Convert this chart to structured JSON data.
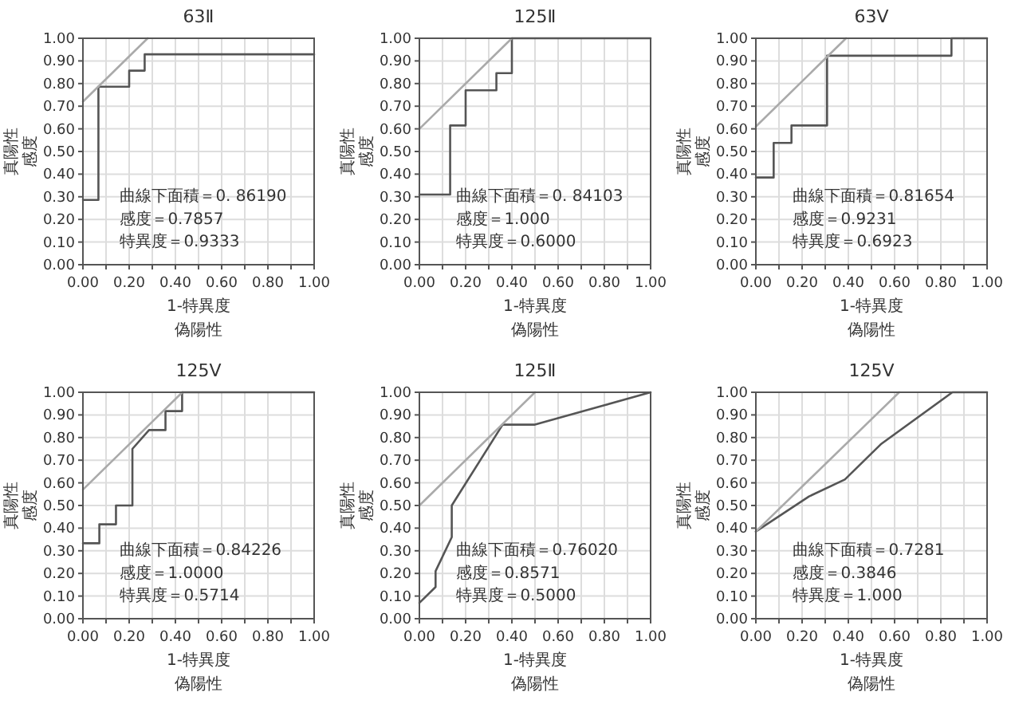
{
  "chart_data": [
    {
      "type": "line",
      "title": "63Ⅱ",
      "xlabel": "1-特異度偽陽性",
      "ylabel": "真陽性感度",
      "xlim": [
        0,
        1
      ],
      "ylim": [
        0,
        1
      ],
      "grid": true,
      "xticks": [
        {
          "value": 0,
          "label": "0.00"
        },
        {
          "value": 0.1,
          "label": null
        },
        {
          "value": 0.2,
          "label": "0.20"
        },
        {
          "value": 0.3,
          "label": null
        },
        {
          "value": 0.4,
          "label": "0.40"
        },
        {
          "value": 0.5,
          "label": null
        },
        {
          "value": 0.6,
          "label": "0.60"
        },
        {
          "value": 0.7,
          "label": null
        },
        {
          "value": 0.8,
          "label": "0.80"
        },
        {
          "value": 0.9,
          "label": null
        },
        {
          "value": 1,
          "label": "1.00"
        }
      ],
      "yticks": [
        {
          "value": 0,
          "label": "0.00"
        },
        {
          "value": 0.1,
          "label": "0.10"
        },
        {
          "value": 0.2,
          "label": "0.20"
        },
        {
          "value": 0.3,
          "label": "0.30"
        },
        {
          "value": 0.4,
          "label": "0.40"
        },
        {
          "value": 0.5,
          "label": "0.50"
        },
        {
          "value": 0.6,
          "label": "0.60"
        },
        {
          "value": 0.7,
          "label": "0.70"
        },
        {
          "value": 0.8,
          "label": "0.80"
        },
        {
          "value": 0.9,
          "label": "0.90"
        },
        {
          "value": 1,
          "label": "1.00"
        }
      ],
      "series": [
        {
          "type": "line",
          "color": "#555555",
          "x": [
            0,
            0.067,
            0.067,
            0.2,
            0.2,
            0.267,
            0.267,
            1
          ],
          "values": [
            0.286,
            0.286,
            0.786,
            0.786,
            0.857,
            0.857,
            0.929,
            0.929
          ]
        },
        {
          "type": "line",
          "color": "#aaaaaa",
          "x": [
            0,
            0.28
          ],
          "values": [
            0.72,
            1
          ]
        }
      ],
      "annotations": [
        "曲線下面積＝0. 86190",
        "感度＝0.7857",
        "特異度＝0.9333"
      ]
    },
    {
      "type": "line",
      "title": "125Ⅱ",
      "xlabel": "1-特異度偽陽性",
      "ylabel": "真陽性感度",
      "xlim": [
        0,
        1
      ],
      "ylim": [
        0,
        1
      ],
      "grid": true,
      "xticks": [
        {
          "value": 0,
          "label": "0.00"
        },
        {
          "value": 0.1,
          "label": null
        },
        {
          "value": 0.2,
          "label": "0.20"
        },
        {
          "value": 0.3,
          "label": null
        },
        {
          "value": 0.4,
          "label": "0.40"
        },
        {
          "value": 0.5,
          "label": null
        },
        {
          "value": 0.6,
          "label": "0.60"
        },
        {
          "value": 0.7,
          "label": null
        },
        {
          "value": 0.8,
          "label": "0.80"
        },
        {
          "value": 0.9,
          "label": null
        },
        {
          "value": 1,
          "label": "1.00"
        }
      ],
      "yticks": [
        {
          "value": 0,
          "label": "0.00"
        },
        {
          "value": 0.1,
          "label": "0.10"
        },
        {
          "value": 0.2,
          "label": "0.20"
        },
        {
          "value": 0.3,
          "label": "0.30"
        },
        {
          "value": 0.4,
          "label": "0.40"
        },
        {
          "value": 0.5,
          "label": "0.50"
        },
        {
          "value": 0.6,
          "label": "0.60"
        },
        {
          "value": 0.7,
          "label": "0.70"
        },
        {
          "value": 0.8,
          "label": "0.80"
        },
        {
          "value": 0.9,
          "label": "0.90"
        },
        {
          "value": 1,
          "label": "1.00"
        }
      ],
      "series": [
        {
          "type": "line",
          "color": "#555555",
          "x": [
            0,
            0.133,
            0.133,
            0.2,
            0.2,
            0.333,
            0.333,
            0.4,
            0.4,
            1
          ],
          "values": [
            0.31,
            0.31,
            0.615,
            0.615,
            0.77,
            0.77,
            0.846,
            0.846,
            1,
            1
          ]
        },
        {
          "type": "line",
          "color": "#aaaaaa",
          "x": [
            0,
            0.4
          ],
          "values": [
            0.6,
            1
          ]
        }
      ],
      "annotations": [
        "曲線下面積＝0. 84103",
        "感度＝1.000",
        "特異度＝0.6000"
      ]
    },
    {
      "type": "line",
      "title": "63Ⅴ",
      "xlabel": "1-特異度偽陽性",
      "ylabel": "真陽性感度",
      "xlim": [
        0,
        1
      ],
      "ylim": [
        0,
        1
      ],
      "grid": true,
      "xticks": [
        {
          "value": 0,
          "label": "0.00"
        },
        {
          "value": 0.1,
          "label": null
        },
        {
          "value": 0.2,
          "label": "0.20"
        },
        {
          "value": 0.3,
          "label": null
        },
        {
          "value": 0.4,
          "label": "0.40"
        },
        {
          "value": 0.5,
          "label": null
        },
        {
          "value": 0.6,
          "label": "0.60"
        },
        {
          "value": 0.7,
          "label": null
        },
        {
          "value": 0.8,
          "label": "0.80"
        },
        {
          "value": 0.9,
          "label": null
        },
        {
          "value": 1,
          "label": "1.00"
        }
      ],
      "yticks": [
        {
          "value": 0,
          "label": "0.00"
        },
        {
          "value": 0.1,
          "label": "0.10"
        },
        {
          "value": 0.2,
          "label": "0.20"
        },
        {
          "value": 0.3,
          "label": "0.30"
        },
        {
          "value": 0.4,
          "label": "0.40"
        },
        {
          "value": 0.5,
          "label": "0.50"
        },
        {
          "value": 0.6,
          "label": "0.60"
        },
        {
          "value": 0.7,
          "label": "0.70"
        },
        {
          "value": 0.8,
          "label": "0.80"
        },
        {
          "value": 0.9,
          "label": "0.90"
        },
        {
          "value": 1,
          "label": "1.00"
        }
      ],
      "series": [
        {
          "type": "line",
          "color": "#555555",
          "x": [
            0,
            0.077,
            0.077,
            0.154,
            0.154,
            0.308,
            0.308,
            0.846,
            0.846,
            1
          ],
          "values": [
            0.385,
            0.385,
            0.538,
            0.538,
            0.615,
            0.615,
            0.923,
            0.923,
            1,
            1
          ]
        },
        {
          "type": "line",
          "color": "#aaaaaa",
          "x": [
            0,
            0.39
          ],
          "values": [
            0.61,
            1
          ]
        }
      ],
      "annotations": [
        "曲線下面積＝0.81654",
        "感度＝0.9231",
        "特異度＝0.6923"
      ]
    },
    {
      "type": "line",
      "title": "125Ⅴ",
      "xlabel": "1-特異度偽陽性",
      "ylabel": "真陽性感度",
      "xlim": [
        0,
        1
      ],
      "ylim": [
        0,
        1
      ],
      "grid": true,
      "xticks": [
        {
          "value": 0,
          "label": "0.00"
        },
        {
          "value": 0.1,
          "label": null
        },
        {
          "value": 0.2,
          "label": "0.20"
        },
        {
          "value": 0.3,
          "label": null
        },
        {
          "value": 0.4,
          "label": "0.40"
        },
        {
          "value": 0.5,
          "label": null
        },
        {
          "value": 0.6,
          "label": "0.60"
        },
        {
          "value": 0.7,
          "label": null
        },
        {
          "value": 0.8,
          "label": "0.80"
        },
        {
          "value": 0.9,
          "label": null
        },
        {
          "value": 1,
          "label": "1.00"
        }
      ],
      "yticks": [
        {
          "value": 0,
          "label": "0.00"
        },
        {
          "value": 0.1,
          "label": "0.10"
        },
        {
          "value": 0.2,
          "label": "0.20"
        },
        {
          "value": 0.3,
          "label": "0.30"
        },
        {
          "value": 0.4,
          "label": "0.40"
        },
        {
          "value": 0.5,
          "label": "0.50"
        },
        {
          "value": 0.6,
          "label": "0.60"
        },
        {
          "value": 0.7,
          "label": "0.70"
        },
        {
          "value": 0.8,
          "label": "0.80"
        },
        {
          "value": 0.9,
          "label": "0.90"
        },
        {
          "value": 1,
          "label": "1.00"
        }
      ],
      "series": [
        {
          "type": "line",
          "color": "#555555",
          "x": [
            0,
            0.071,
            0.071,
            0.143,
            0.143,
            0.214,
            0.214,
            0.286,
            0.357,
            0.357,
            0.429,
            0.429,
            1
          ],
          "values": [
            0.333,
            0.333,
            0.417,
            0.417,
            0.5,
            0.5,
            0.75,
            0.833,
            0.833,
            0.917,
            0.917,
            1,
            1
          ]
        },
        {
          "type": "line",
          "color": "#aaaaaa",
          "x": [
            0,
            0.43
          ],
          "values": [
            0.57,
            1
          ]
        }
      ],
      "annotations": [
        "曲線下面積＝0.84226",
        "感度＝1.0000",
        "特異度＝0.5714"
      ]
    },
    {
      "type": "line",
      "title": "125Ⅱ",
      "xlabel": "1-特異度偽陽性",
      "ylabel": "真陽性感度",
      "xlim": [
        0,
        1
      ],
      "ylim": [
        0,
        1
      ],
      "grid": true,
      "xticks": [
        {
          "value": 0,
          "label": "0.00"
        },
        {
          "value": 0.1,
          "label": null
        },
        {
          "value": 0.2,
          "label": "0.20"
        },
        {
          "value": 0.3,
          "label": null
        },
        {
          "value": 0.4,
          "label": "0.40"
        },
        {
          "value": 0.5,
          "label": null
        },
        {
          "value": 0.6,
          "label": "0.60"
        },
        {
          "value": 0.7,
          "label": null
        },
        {
          "value": 0.8,
          "label": "0.80"
        },
        {
          "value": 0.9,
          "label": null
        },
        {
          "value": 1,
          "label": "1.00"
        }
      ],
      "yticks": [
        {
          "value": 0,
          "label": "0.00"
        },
        {
          "value": 0.1,
          "label": "0.10"
        },
        {
          "value": 0.2,
          "label": "0.20"
        },
        {
          "value": 0.3,
          "label": "0.30"
        },
        {
          "value": 0.4,
          "label": "0.40"
        },
        {
          "value": 0.5,
          "label": "0.50"
        },
        {
          "value": 0.6,
          "label": "0.60"
        },
        {
          "value": 0.7,
          "label": "0.70"
        },
        {
          "value": 0.8,
          "label": "0.80"
        },
        {
          "value": 0.9,
          "label": "0.90"
        },
        {
          "value": 1,
          "label": "1.00"
        }
      ],
      "series": [
        {
          "type": "line",
          "color": "#555555",
          "x": [
            0,
            0.07,
            0.07,
            0.14,
            0.14,
            0.36,
            0.5,
            1
          ],
          "values": [
            0.07,
            0.14,
            0.21,
            0.36,
            0.5,
            0.857,
            0.857,
            1
          ]
        },
        {
          "type": "line",
          "color": "#aaaaaa",
          "x": [
            0,
            0.5
          ],
          "values": [
            0.5,
            1
          ]
        }
      ],
      "annotations": [
        "曲線下面積＝0.76020",
        "感度＝0.8571",
        "特異度＝0.5000"
      ]
    },
    {
      "type": "line",
      "title": "125Ⅴ",
      "xlabel": "1-特異度偽陽性",
      "ylabel": "真陽性感度",
      "xlim": [
        0,
        1
      ],
      "ylim": [
        0,
        1
      ],
      "grid": true,
      "xticks": [
        {
          "value": 0,
          "label": "0.00"
        },
        {
          "value": 0.1,
          "label": null
        },
        {
          "value": 0.2,
          "label": "0.20"
        },
        {
          "value": 0.3,
          "label": null
        },
        {
          "value": 0.4,
          "label": "0.40"
        },
        {
          "value": 0.5,
          "label": null
        },
        {
          "value": 0.6,
          "label": "0.60"
        },
        {
          "value": 0.7,
          "label": null
        },
        {
          "value": 0.8,
          "label": "0.80"
        },
        {
          "value": 0.9,
          "label": null
        },
        {
          "value": 1,
          "label": "1.00"
        }
      ],
      "yticks": [
        {
          "value": 0,
          "label": "0.00"
        },
        {
          "value": 0.1,
          "label": "0.10"
        },
        {
          "value": 0.2,
          "label": "0.20"
        },
        {
          "value": 0.3,
          "label": "0.30"
        },
        {
          "value": 0.4,
          "label": "0.40"
        },
        {
          "value": 0.5,
          "label": "0.50"
        },
        {
          "value": 0.6,
          "label": "0.60"
        },
        {
          "value": 0.7,
          "label": "0.70"
        },
        {
          "value": 0.8,
          "label": "0.80"
        },
        {
          "value": 0.9,
          "label": "0.90"
        },
        {
          "value": 1,
          "label": "1.00"
        }
      ],
      "series": [
        {
          "type": "line",
          "color": "#555555",
          "x": [
            0,
            0.23,
            0.385,
            0.54,
            0.85,
            1
          ],
          "values": [
            0.385,
            0.54,
            0.615,
            0.77,
            1,
            1
          ]
        },
        {
          "type": "line",
          "color": "#aaaaaa",
          "x": [
            0,
            0.62
          ],
          "values": [
            0.385,
            1
          ]
        }
      ],
      "annotations": [
        "曲線下面積＝0.7281",
        "感度＝0.3846",
        "特異度＝1.000"
      ]
    }
  ]
}
